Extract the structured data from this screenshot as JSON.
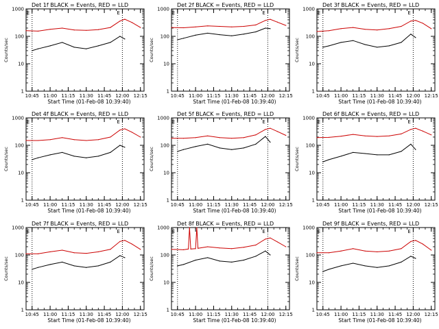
{
  "chart_data": [
    {
      "type": "line",
      "title": "Det 1f BLACK = Events, RED = LLD",
      "ylabel": "Counts/sec",
      "xlabel": "Start Time (01-Feb-08 10:39:40)",
      "yscale": "log",
      "ylim": [
        1,
        1000
      ],
      "xlim": [
        "10:40",
        "12:18"
      ],
      "x_ticks": [
        "10:45",
        "11:00",
        "11:15",
        "11:30",
        "11:45",
        "12:00",
        "12:15"
      ],
      "y_ticks": [
        "1",
        "10",
        "100",
        "1000"
      ],
      "markers": [
        {
          "x": "10:45",
          "label": "E"
        },
        {
          "x": "12:00",
          "label": "E"
        }
      ],
      "series": [
        {
          "color": "#cc0000",
          "x": [
            "10:40",
            "10:50",
            "11:00",
            "11:10",
            "11:20",
            "11:30",
            "11:40",
            "11:50",
            "11:58",
            "12:02",
            "12:08",
            "12:15"
          ],
          "values": [
            160,
            155,
            180,
            200,
            170,
            165,
            175,
            210,
            360,
            420,
            320,
            210
          ]
        },
        {
          "color": "#000000",
          "x": [
            "10:45",
            "10:50",
            "11:00",
            "11:10",
            "11:20",
            "11:30",
            "11:40",
            "11:50",
            "11:58",
            "12:02"
          ],
          "values": [
            30,
            35,
            45,
            60,
            40,
            35,
            45,
            60,
            100,
            80
          ]
        }
      ]
    },
    {
      "type": "line",
      "title": "Det 2f BLACK = Events, RED = LLD",
      "ylabel": "Counts/sec",
      "xlabel": "Start Time (01-Feb-08 10:39:40)",
      "yscale": "log",
      "ylim": [
        1,
        1000
      ],
      "xlim": [
        "10:40",
        "12:18"
      ],
      "x_ticks": [
        "10:45",
        "11:00",
        "11:15",
        "11:30",
        "11:45",
        "12:00",
        "12:15"
      ],
      "y_ticks": [
        "1",
        "10",
        "100",
        "1000"
      ],
      "markers": [
        {
          "x": "10:45",
          "label": "E"
        },
        {
          "x": "12:00",
          "label": "E"
        }
      ],
      "series": [
        {
          "color": "#cc0000",
          "x": [
            "10:40",
            "10:50",
            "11:00",
            "11:10",
            "11:20",
            "11:30",
            "11:40",
            "11:50",
            "11:58",
            "12:02",
            "12:08",
            "12:15"
          ],
          "values": [
            210,
            205,
            220,
            240,
            230,
            220,
            230,
            260,
            380,
            420,
            330,
            250
          ]
        },
        {
          "color": "#000000",
          "x": [
            "10:45",
            "10:50",
            "11:00",
            "11:10",
            "11:20",
            "11:30",
            "11:40",
            "11:50",
            "11:58",
            "12:02"
          ],
          "values": [
            75,
            85,
            110,
            130,
            115,
            105,
            120,
            145,
            200,
            190
          ]
        }
      ]
    },
    {
      "type": "line",
      "title": "Det 3f BLACK = Events, RED = LLD",
      "ylabel": "Counts/sec",
      "xlabel": "Start Time (01-Feb-08 10:39:40)",
      "yscale": "log",
      "ylim": [
        1,
        1000
      ],
      "xlim": [
        "10:40",
        "12:18"
      ],
      "x_ticks": [
        "10:45",
        "11:00",
        "11:15",
        "11:30",
        "11:45",
        "12:00",
        "12:15"
      ],
      "y_ticks": [
        "1",
        "10",
        "100",
        "1000"
      ],
      "markers": [
        {
          "x": "10:45",
          "label": "E"
        },
        {
          "x": "12:00",
          "label": "E"
        }
      ],
      "series": [
        {
          "color": "#cc0000",
          "x": [
            "10:40",
            "10:50",
            "11:00",
            "11:10",
            "11:20",
            "11:30",
            "11:40",
            "11:50",
            "11:58",
            "12:02",
            "12:08",
            "12:15"
          ],
          "values": [
            150,
            160,
            190,
            210,
            180,
            170,
            190,
            230,
            360,
            380,
            300,
            190
          ]
        },
        {
          "color": "#000000",
          "x": [
            "10:45",
            "10:50",
            "11:00",
            "11:10",
            "11:20",
            "11:30",
            "11:40",
            "11:50",
            "11:58",
            "12:02"
          ],
          "values": [
            40,
            45,
            60,
            70,
            50,
            40,
            45,
            60,
            120,
            90
          ]
        }
      ]
    },
    {
      "type": "line",
      "title": "Det 4f BLACK = Events, RED = LLD",
      "ylabel": "Counts/sec",
      "xlabel": "Start Time (01-Feb-08 10:39:40)",
      "yscale": "log",
      "ylim": [
        1,
        1000
      ],
      "xlim": [
        "10:40",
        "12:18"
      ],
      "x_ticks": [
        "10:45",
        "11:00",
        "11:15",
        "11:30",
        "11:45",
        "12:00",
        "12:15"
      ],
      "y_ticks": [
        "1",
        "10",
        "100",
        "1000"
      ],
      "markers": [
        {
          "x": "10:45",
          "label": "E"
        },
        {
          "x": "12:00",
          "label": "E"
        }
      ],
      "series": [
        {
          "color": "#cc0000",
          "x": [
            "10:40",
            "10:50",
            "11:00",
            "11:10",
            "11:20",
            "11:30",
            "11:40",
            "11:50",
            "11:58",
            "12:02",
            "12:08",
            "12:15"
          ],
          "values": [
            150,
            150,
            160,
            190,
            160,
            150,
            160,
            200,
            360,
            400,
            300,
            200
          ]
        },
        {
          "color": "#000000",
          "x": [
            "10:45",
            "10:50",
            "11:00",
            "11:10",
            "11:20",
            "11:30",
            "11:40",
            "11:50",
            "11:58",
            "12:02"
          ],
          "values": [
            30,
            35,
            45,
            55,
            40,
            35,
            40,
            55,
            100,
            85
          ]
        }
      ]
    },
    {
      "type": "line",
      "title": "Det 5f BLACK = Events, RED = LLD",
      "ylabel": "Counts/sec",
      "xlabel": "Start Time (01-Feb-08 10:39:40)",
      "yscale": "log",
      "ylim": [
        1,
        1000
      ],
      "xlim": [
        "10:40",
        "12:18"
      ],
      "x_ticks": [
        "10:45",
        "11:00",
        "11:15",
        "11:30",
        "11:45",
        "12:00",
        "12:15"
      ],
      "y_ticks": [
        "1",
        "10",
        "100",
        "1000"
      ],
      "markers": [
        {
          "x": "10:45",
          "label": "E"
        },
        {
          "x": "12:00",
          "label": "E"
        }
      ],
      "series": [
        {
          "color": "#cc0000",
          "x": [
            "10:40",
            "10:50",
            "11:00",
            "11:10",
            "11:20",
            "11:30",
            "11:40",
            "11:50",
            "11:58",
            "12:02",
            "12:08",
            "12:15"
          ],
          "values": [
            180,
            180,
            190,
            220,
            190,
            180,
            190,
            240,
            380,
            420,
            320,
            230
          ]
        },
        {
          "color": "#000000",
          "x": [
            "10:45",
            "10:50",
            "11:00",
            "11:10",
            "11:20",
            "11:30",
            "11:40",
            "11:50",
            "11:58",
            "12:02"
          ],
          "values": [
            60,
            70,
            90,
            110,
            80,
            70,
            80,
            110,
            210,
            130
          ]
        }
      ]
    },
    {
      "type": "line",
      "title": "Det 6f BLACK = Events, RED = LLD",
      "ylabel": "Counts/sec",
      "xlabel": "Start Time (01-Feb-08 10:39:40)",
      "yscale": "log",
      "ylim": [
        1,
        1000
      ],
      "xlim": [
        "10:40",
        "12:18"
      ],
      "x_ticks": [
        "10:45",
        "11:00",
        "11:15",
        "11:30",
        "11:45",
        "12:00",
        "12:15"
      ],
      "y_ticks": [
        "1",
        "10",
        "100",
        "1000"
      ],
      "markers": [
        {
          "x": "10:45",
          "label": "E"
        },
        {
          "x": "12:00",
          "label": "E"
        }
      ],
      "series": [
        {
          "color": "#cc0000",
          "x": [
            "10:40",
            "10:50",
            "11:00",
            "11:10",
            "11:20",
            "11:30",
            "11:40",
            "11:50",
            "11:58",
            "12:02",
            "12:08",
            "12:15"
          ],
          "values": [
            190,
            195,
            215,
            250,
            220,
            210,
            220,
            260,
            380,
            420,
            330,
            240
          ]
        },
        {
          "color": "#000000",
          "x": [
            "10:45",
            "10:50",
            "11:00",
            "11:10",
            "11:20",
            "11:30",
            "11:40",
            "11:50",
            "11:58",
            "12:02"
          ],
          "values": [
            25,
            30,
            40,
            55,
            50,
            45,
            45,
            60,
            110,
            70
          ]
        }
      ]
    },
    {
      "type": "line",
      "title": "Det 7f BLACK = Events, RED = LLD",
      "ylabel": "Counts/sec",
      "xlabel": "Start Time (01-Feb-08 10:39:40)",
      "yscale": "log",
      "ylim": [
        1,
        1000
      ],
      "xlim": [
        "10:40",
        "12:18"
      ],
      "x_ticks": [
        "10:45",
        "11:00",
        "11:15",
        "11:30",
        "11:45",
        "12:00",
        "12:15"
      ],
      "y_ticks": [
        "1",
        "10",
        "100",
        "1000"
      ],
      "markers": [
        {
          "x": "10:45",
          "label": "E"
        },
        {
          "x": "12:00",
          "label": "E"
        }
      ],
      "series": [
        {
          "color": "#cc0000",
          "x": [
            "10:40",
            "10:50",
            "11:00",
            "11:10",
            "11:20",
            "11:30",
            "11:40",
            "11:50",
            "11:58",
            "12:02",
            "12:08",
            "12:15"
          ],
          "values": [
            110,
            110,
            130,
            150,
            120,
            115,
            130,
            160,
            310,
            340,
            250,
            160
          ]
        },
        {
          "color": "#000000",
          "x": [
            "10:45",
            "10:50",
            "11:00",
            "11:10",
            "11:20",
            "11:30",
            "11:40",
            "11:50",
            "11:58",
            "12:02"
          ],
          "values": [
            30,
            35,
            45,
            55,
            40,
            35,
            40,
            55,
            95,
            80
          ]
        }
      ]
    },
    {
      "type": "line",
      "title": "Det 8f BLACK = Events, RED = LLD",
      "ylabel": "Counts/sec",
      "xlabel": "Start Time (01-Feb-08 10:39:40)",
      "yscale": "log",
      "ylim": [
        1,
        1000
      ],
      "xlim": [
        "10:40",
        "12:18"
      ],
      "x_ticks": [
        "10:45",
        "11:00",
        "11:15",
        "11:30",
        "11:45",
        "12:00",
        "12:15"
      ],
      "y_ticks": [
        "1",
        "10",
        "100",
        "1000"
      ],
      "markers": [
        {
          "x": "10:45",
          "label": "E"
        },
        {
          "x": "12:00",
          "label": "E"
        }
      ],
      "series": [
        {
          "color": "#cc0000",
          "x": [
            "10:40",
            "10:50",
            "10:54",
            "10:55",
            "10:56",
            "11:00",
            "11:01",
            "11:02",
            "11:10",
            "11:20",
            "11:30",
            "11:40",
            "11:50",
            "11:58",
            "12:02",
            "12:08",
            "12:15"
          ],
          "values": [
            160,
            155,
            165,
            1000,
            165,
            170,
            1000,
            175,
            200,
            180,
            170,
            190,
            230,
            380,
            420,
            300,
            200
          ]
        },
        {
          "color": "#000000",
          "x": [
            "10:45",
            "10:50",
            "11:00",
            "11:10",
            "11:20",
            "11:30",
            "11:40",
            "11:50",
            "11:58",
            "12:02"
          ],
          "values": [
            40,
            45,
            65,
            80,
            60,
            55,
            65,
            90,
            140,
            100
          ]
        }
      ]
    },
    {
      "type": "line",
      "title": "Det 9f BLACK = Events, RED = LLD",
      "ylabel": "Counts/sec",
      "xlabel": "Start Time (01-Feb-08 10:39:40)",
      "yscale": "log",
      "ylim": [
        1,
        1000
      ],
      "xlim": [
        "10:40",
        "12:18"
      ],
      "x_ticks": [
        "10:45",
        "11:00",
        "11:15",
        "11:30",
        "11:45",
        "12:00",
        "12:15"
      ],
      "y_ticks": [
        "1",
        "10",
        "100",
        "1000"
      ],
      "markers": [
        {
          "x": "10:45",
          "label": "E"
        },
        {
          "x": "12:00",
          "label": "E"
        }
      ],
      "series": [
        {
          "color": "#cc0000",
          "x": [
            "10:40",
            "10:50",
            "11:00",
            "11:10",
            "11:20",
            "11:30",
            "11:40",
            "11:50",
            "11:58",
            "12:02",
            "12:08",
            "12:15"
          ],
          "values": [
            120,
            120,
            140,
            170,
            140,
            130,
            140,
            170,
            310,
            340,
            250,
            150
          ]
        },
        {
          "color": "#000000",
          "x": [
            "10:45",
            "10:50",
            "11:00",
            "11:10",
            "11:20",
            "11:30",
            "11:40",
            "11:50",
            "11:58",
            "12:02"
          ],
          "values": [
            25,
            30,
            40,
            50,
            40,
            35,
            40,
            55,
            90,
            75
          ]
        }
      ]
    }
  ]
}
